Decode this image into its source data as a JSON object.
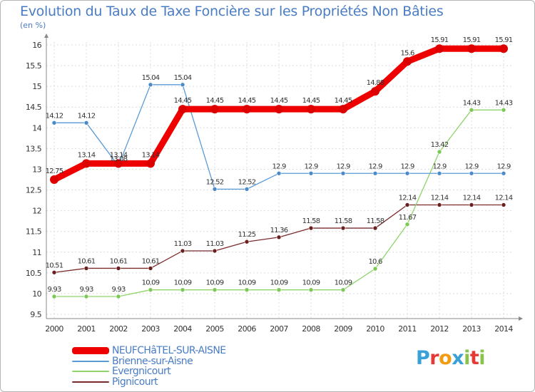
{
  "chart_data": {
    "type": "line",
    "title": "Evolution du Taux de Taxe Foncière sur les Propriétés Non Bâties",
    "unit_label": "(en %)",
    "xlabel": "",
    "ylabel": "",
    "x": [
      "2000",
      "2001",
      "2002",
      "2003",
      "2004",
      "2005",
      "2006",
      "2007",
      "2008",
      "2009",
      "2010",
      "2011",
      "2012",
      "2013",
      "2014"
    ],
    "ylim": [
      9.5,
      16
    ],
    "yticks": [
      "9.5",
      "10",
      "10.5",
      "11",
      "11.5",
      "12",
      "12.5",
      "13",
      "13.5",
      "14",
      "14.5",
      "15",
      "15.5",
      "16"
    ],
    "grid": true,
    "series": [
      {
        "name": "NEUFCHâTEL-SUR-AISNE",
        "color": "#ee0000",
        "values": [
          12.75,
          13.14,
          13.14,
          13.14,
          14.45,
          14.45,
          14.45,
          14.45,
          14.45,
          14.45,
          14.88,
          15.6,
          15.91,
          15.91,
          15.91
        ],
        "labels": [
          "12.75",
          "13.14",
          "13.14",
          "13.14",
          "14.45",
          "14.45",
          "14.45",
          "14.45",
          "14.45",
          "14.45",
          "14.88",
          "15.6",
          "15.91",
          "15.91",
          "15.91"
        ]
      },
      {
        "name": "Brienne-sur-Aisne",
        "color": "#5b9bd5",
        "values": [
          14.12,
          14.12,
          13.08,
          15.04,
          15.04,
          12.52,
          12.52,
          12.9,
          12.9,
          12.9,
          12.9,
          12.9,
          12.9,
          12.9,
          12.9
        ],
        "labels": [
          "14.12",
          "14.12",
          "13.08",
          "15.04",
          "15.04",
          "12.52",
          "12.52",
          "12.9",
          "12.9",
          "12.9",
          "12.9",
          "12.9",
          "12.9",
          "12.9",
          "12.9"
        ]
      },
      {
        "name": "Evergnicourt",
        "color": "#8fd46a",
        "values": [
          9.93,
          9.93,
          9.93,
          10.09,
          10.09,
          10.09,
          10.09,
          10.09,
          10.09,
          10.09,
          10.6,
          11.67,
          13.42,
          14.43,
          14.43
        ],
        "labels": [
          "9.93",
          "9.93",
          "9.93",
          "10.09",
          "10.09",
          "10.09",
          "10.09",
          "10.09",
          "10.09",
          "10.09",
          "10.6",
          "11.67",
          "13.42",
          "14.43",
          "14.43"
        ]
      },
      {
        "name": "Pignicourt",
        "color": "#7a2b2b",
        "values": [
          10.51,
          10.61,
          10.61,
          10.61,
          11.03,
          11.03,
          11.25,
          11.36,
          11.58,
          11.58,
          11.58,
          12.14,
          12.14,
          12.14,
          12.14
        ],
        "labels": [
          "10.51",
          "10.61",
          "10.61",
          "10.61",
          "11.03",
          "11.03",
          "11.25",
          "11.36",
          "11.58",
          "11.58",
          "11.58",
          "12.14",
          "12.14",
          "12.14",
          "12.14"
        ]
      }
    ],
    "legend": {
      "placement": "bottom-left",
      "entries": [
        "NEUFCHâTEL-SUR-AISNE",
        "Brienne-sur-Aisne",
        "Evergnicourt",
        "Pignicourt"
      ]
    }
  },
  "logo": {
    "letters": [
      "P",
      "r",
      "o",
      "x",
      "i",
      "t",
      "i"
    ],
    "colors": [
      "#3aa0d8",
      "#e53935",
      "#f39c12",
      "#3aa0d8",
      "#8bc34a",
      "#e53935",
      "#8bc34a"
    ]
  }
}
